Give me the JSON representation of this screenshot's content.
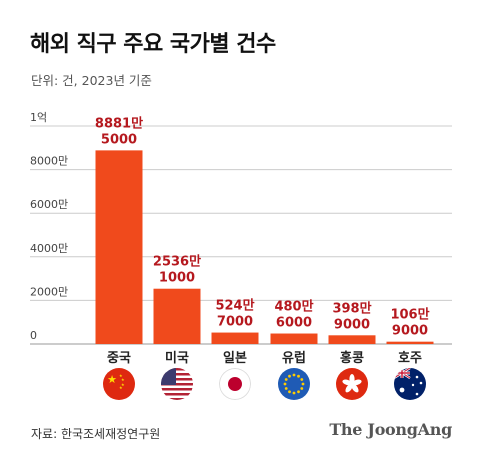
{
  "title": "해외 직구 주요 국가별 건수",
  "unit": "단위: 건, 2023년 기준",
  "source": "자료: 한국조세재정연구원",
  "logo": "The JoongAng",
  "colors": {
    "bar": "#f04a1c",
    "label": "#b5181e",
    "grid": "#cccccc",
    "axis_text": "#444444"
  },
  "chart_data": {
    "type": "bar",
    "title": "해외 직구 주요 국가별 건수",
    "categories": [
      "중국",
      "미국",
      "일본",
      "유럽",
      "홍콩",
      "호주"
    ],
    "values": [
      88815000,
      25361000,
      5247000,
      4806000,
      3989000,
      1069000
    ],
    "data_labels": [
      [
        "8881만",
        "5000"
      ],
      [
        "2536만",
        "1000"
      ],
      [
        "524만",
        "7000"
      ],
      [
        "480만",
        "6000"
      ],
      [
        "398만",
        "9000"
      ],
      [
        "106만",
        "9000"
      ]
    ],
    "yticks": [
      0,
      20000000,
      40000000,
      60000000,
      80000000,
      100000000
    ],
    "ytick_labels": [
      "0",
      "2000만",
      "4000만",
      "6000만",
      "8000만",
      "1억"
    ],
    "ylim": [
      0,
      100000000
    ],
    "grid": true,
    "flags": [
      "china-flag",
      "usa-flag",
      "japan-flag",
      "eu-flag",
      "hongkong-flag",
      "australia-flag"
    ]
  }
}
